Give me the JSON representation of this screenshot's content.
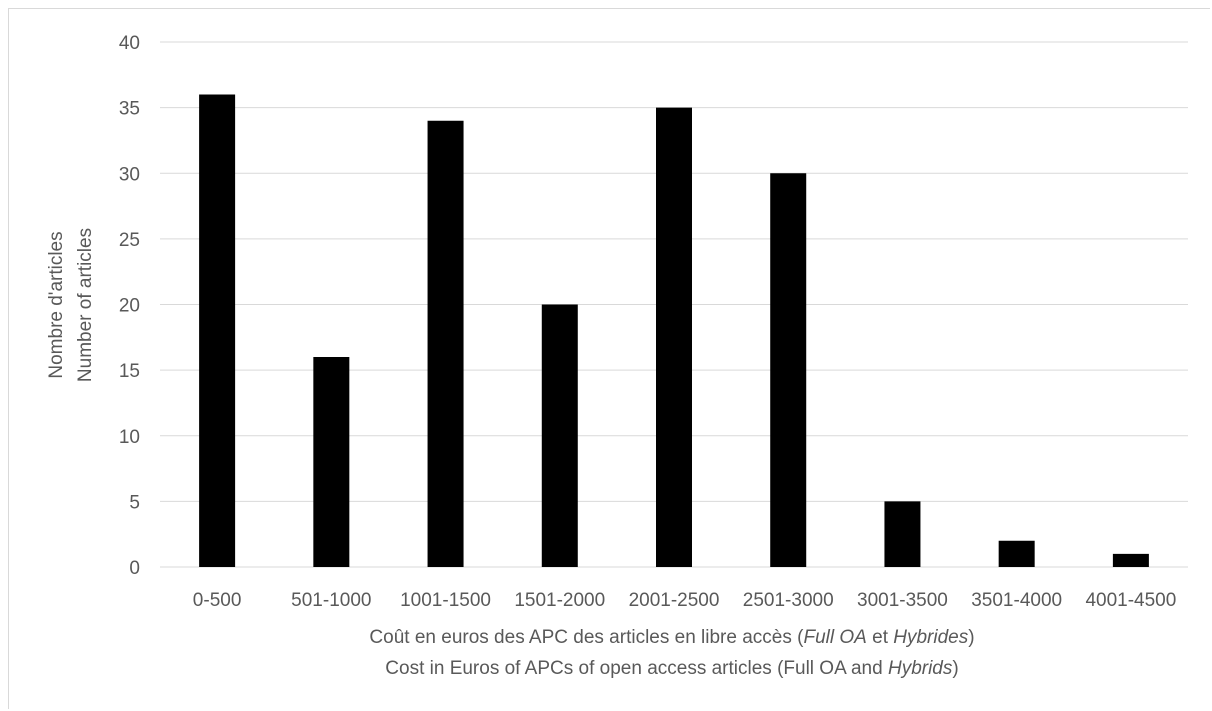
{
  "chart_data": {
    "type": "bar",
    "categories": [
      "0-500",
      "501-1000",
      "1001-1500",
      "1501-2000",
      "2001-2500",
      "2501-3000",
      "3001-3500",
      "3501-4000",
      "4001-4500"
    ],
    "series": [
      {
        "values": [
          36,
          16,
          34,
          20,
          35,
          30,
          5,
          2,
          1
        ]
      }
    ],
    "ylim": [
      0,
      40
    ],
    "yticks": [
      0,
      5,
      10,
      15,
      20,
      25,
      30,
      35,
      40
    ],
    "xlabel": {
      "fr_prefix": "Coût en euros des APC des articles en libre accès (",
      "fr_italic1": "Full OA",
      "fr_mid": " et ",
      "fr_italic2": "Hybrides",
      "fr_suffix": ")",
      "en_prefix": "Cost in Euros of APCs of open access articles (Full OA and ",
      "en_italic": "Hybrids",
      "en_suffix": ")"
    },
    "ylabel": [
      "Nombre d'articles",
      "Number of articles"
    ],
    "grid": true,
    "legend": "none",
    "colors": {
      "bar": "#000000",
      "grid": "#d9d9d9",
      "text": "#595959"
    }
  }
}
